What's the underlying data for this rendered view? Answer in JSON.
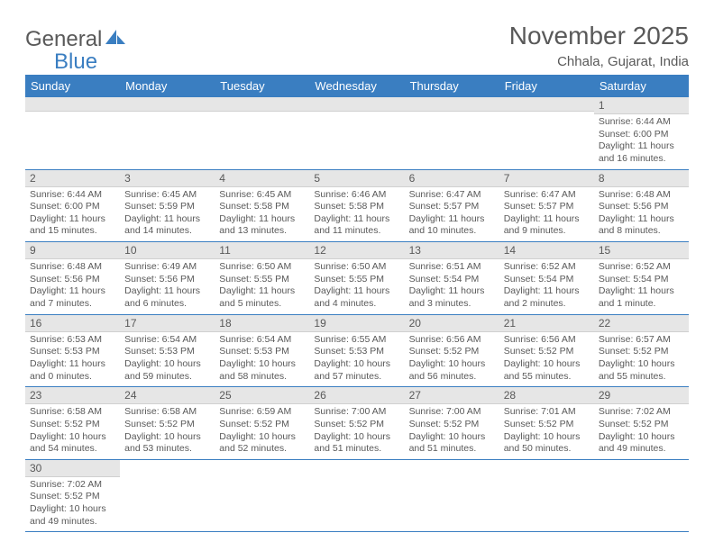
{
  "brand": {
    "word1": "General",
    "word2": "Blue"
  },
  "title": "November 2025",
  "location": "Chhala, Gujarat, India",
  "colors": {
    "header_bg": "#3a7ec1",
    "header_text": "#ffffff",
    "daynum_bg": "#e6e6e6",
    "text": "#595959",
    "row_border": "#3a7ec1"
  },
  "fonts": {
    "title_size": 28,
    "location_size": 15,
    "th_size": 13,
    "daynum_size": 12,
    "body_size": 10.5
  },
  "weekdays": [
    "Sunday",
    "Monday",
    "Tuesday",
    "Wednesday",
    "Thursday",
    "Friday",
    "Saturday"
  ],
  "grid": [
    [
      null,
      null,
      null,
      null,
      null,
      null,
      {
        "n": "1",
        "sr": "6:44 AM",
        "ss": "6:00 PM",
        "dl": "11 hours and 16 minutes."
      }
    ],
    [
      {
        "n": "2",
        "sr": "6:44 AM",
        "ss": "6:00 PM",
        "dl": "11 hours and 15 minutes."
      },
      {
        "n": "3",
        "sr": "6:45 AM",
        "ss": "5:59 PM",
        "dl": "11 hours and 14 minutes."
      },
      {
        "n": "4",
        "sr": "6:45 AM",
        "ss": "5:58 PM",
        "dl": "11 hours and 13 minutes."
      },
      {
        "n": "5",
        "sr": "6:46 AM",
        "ss": "5:58 PM",
        "dl": "11 hours and 11 minutes."
      },
      {
        "n": "6",
        "sr": "6:47 AM",
        "ss": "5:57 PM",
        "dl": "11 hours and 10 minutes."
      },
      {
        "n": "7",
        "sr": "6:47 AM",
        "ss": "5:57 PM",
        "dl": "11 hours and 9 minutes."
      },
      {
        "n": "8",
        "sr": "6:48 AM",
        "ss": "5:56 PM",
        "dl": "11 hours and 8 minutes."
      }
    ],
    [
      {
        "n": "9",
        "sr": "6:48 AM",
        "ss": "5:56 PM",
        "dl": "11 hours and 7 minutes."
      },
      {
        "n": "10",
        "sr": "6:49 AM",
        "ss": "5:56 PM",
        "dl": "11 hours and 6 minutes."
      },
      {
        "n": "11",
        "sr": "6:50 AM",
        "ss": "5:55 PM",
        "dl": "11 hours and 5 minutes."
      },
      {
        "n": "12",
        "sr": "6:50 AM",
        "ss": "5:55 PM",
        "dl": "11 hours and 4 minutes."
      },
      {
        "n": "13",
        "sr": "6:51 AM",
        "ss": "5:54 PM",
        "dl": "11 hours and 3 minutes."
      },
      {
        "n": "14",
        "sr": "6:52 AM",
        "ss": "5:54 PM",
        "dl": "11 hours and 2 minutes."
      },
      {
        "n": "15",
        "sr": "6:52 AM",
        "ss": "5:54 PM",
        "dl": "11 hours and 1 minute."
      }
    ],
    [
      {
        "n": "16",
        "sr": "6:53 AM",
        "ss": "5:53 PM",
        "dl": "11 hours and 0 minutes."
      },
      {
        "n": "17",
        "sr": "6:54 AM",
        "ss": "5:53 PM",
        "dl": "10 hours and 59 minutes."
      },
      {
        "n": "18",
        "sr": "6:54 AM",
        "ss": "5:53 PM",
        "dl": "10 hours and 58 minutes."
      },
      {
        "n": "19",
        "sr": "6:55 AM",
        "ss": "5:53 PM",
        "dl": "10 hours and 57 minutes."
      },
      {
        "n": "20",
        "sr": "6:56 AM",
        "ss": "5:52 PM",
        "dl": "10 hours and 56 minutes."
      },
      {
        "n": "21",
        "sr": "6:56 AM",
        "ss": "5:52 PM",
        "dl": "10 hours and 55 minutes."
      },
      {
        "n": "22",
        "sr": "6:57 AM",
        "ss": "5:52 PM",
        "dl": "10 hours and 55 minutes."
      }
    ],
    [
      {
        "n": "23",
        "sr": "6:58 AM",
        "ss": "5:52 PM",
        "dl": "10 hours and 54 minutes."
      },
      {
        "n": "24",
        "sr": "6:58 AM",
        "ss": "5:52 PM",
        "dl": "10 hours and 53 minutes."
      },
      {
        "n": "25",
        "sr": "6:59 AM",
        "ss": "5:52 PM",
        "dl": "10 hours and 52 minutes."
      },
      {
        "n": "26",
        "sr": "7:00 AM",
        "ss": "5:52 PM",
        "dl": "10 hours and 51 minutes."
      },
      {
        "n": "27",
        "sr": "7:00 AM",
        "ss": "5:52 PM",
        "dl": "10 hours and 51 minutes."
      },
      {
        "n": "28",
        "sr": "7:01 AM",
        "ss": "5:52 PM",
        "dl": "10 hours and 50 minutes."
      },
      {
        "n": "29",
        "sr": "7:02 AM",
        "ss": "5:52 PM",
        "dl": "10 hours and 49 minutes."
      }
    ],
    [
      {
        "n": "30",
        "sr": "7:02 AM",
        "ss": "5:52 PM",
        "dl": "10 hours and 49 minutes."
      },
      null,
      null,
      null,
      null,
      null,
      null
    ]
  ],
  "labels": {
    "sunrise": "Sunrise:",
    "sunset": "Sunset:",
    "daylight": "Daylight:"
  }
}
